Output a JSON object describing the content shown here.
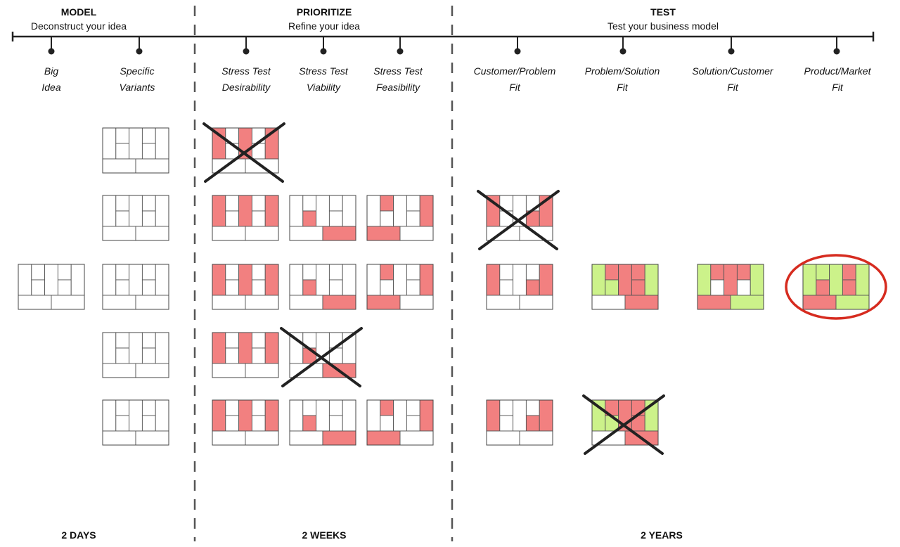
{
  "phases": [
    {
      "title": "MODEL",
      "subtitle": "Deconstruct your idea",
      "duration": "2 DAYS"
    },
    {
      "title": "PRIORITIZE",
      "subtitle": "Refine your idea",
      "duration": "2 WEEKS"
    },
    {
      "title": "TEST",
      "subtitle": "Test your business model",
      "duration": "2 YEARS"
    }
  ],
  "stages": [
    {
      "line1": "Big",
      "line2": "Idea"
    },
    {
      "line1": "Specific",
      "line2": "Variants"
    },
    {
      "line1": "Stress Test",
      "line2": "Desirability"
    },
    {
      "line1": "Stress Test",
      "line2": "Viability"
    },
    {
      "line1": "Stress Test",
      "line2": "Feasibility"
    },
    {
      "line1": "Customer/Problem",
      "line2": "Fit"
    },
    {
      "line1": "Problem/Solution",
      "line2": "Fit"
    },
    {
      "line1": "Solution/Customer",
      "line2": "Fit"
    },
    {
      "line1": "Product/Market",
      "line2": "Fit"
    }
  ],
  "colors": {
    "tested": "#f28080",
    "validated": "#ccf28a",
    "untested": "#ffffff",
    "rejected_mark": "#222222",
    "winner_circle": "#d62b1f",
    "line": "#222222"
  },
  "canvases": [
    {
      "stage": 0,
      "row": 2,
      "fill": "none",
      "rejected": false
    },
    {
      "stage": 1,
      "row": 0,
      "fill": "none",
      "rejected": false
    },
    {
      "stage": 1,
      "row": 1,
      "fill": "none",
      "rejected": false
    },
    {
      "stage": 1,
      "row": 2,
      "fill": "none",
      "rejected": false
    },
    {
      "stage": 1,
      "row": 3,
      "fill": "none",
      "rejected": false
    },
    {
      "stage": 1,
      "row": 4,
      "fill": "none",
      "rejected": false
    },
    {
      "stage": 2,
      "row": 0,
      "fill": "desirability",
      "rejected": true
    },
    {
      "stage": 2,
      "row": 1,
      "fill": "desirability",
      "rejected": false
    },
    {
      "stage": 2,
      "row": 2,
      "fill": "desirability",
      "rejected": false
    },
    {
      "stage": 2,
      "row": 3,
      "fill": "desirability",
      "rejected": false
    },
    {
      "stage": 2,
      "row": 4,
      "fill": "desirability",
      "rejected": false
    },
    {
      "stage": 3,
      "row": 1,
      "fill": "viability",
      "rejected": false
    },
    {
      "stage": 3,
      "row": 2,
      "fill": "viability",
      "rejected": false
    },
    {
      "stage": 3,
      "row": 3,
      "fill": "viability",
      "rejected": true
    },
    {
      "stage": 3,
      "row": 4,
      "fill": "viability",
      "rejected": false
    },
    {
      "stage": 4,
      "row": 1,
      "fill": "feasibility",
      "rejected": false
    },
    {
      "stage": 4,
      "row": 2,
      "fill": "feasibility",
      "rejected": false
    },
    {
      "stage": 4,
      "row": 4,
      "fill": "feasibility",
      "rejected": false
    },
    {
      "stage": 5,
      "row": 1,
      "fill": "customer-problem",
      "rejected": true
    },
    {
      "stage": 5,
      "row": 2,
      "fill": "customer-problem",
      "rejected": false
    },
    {
      "stage": 5,
      "row": 4,
      "fill": "customer-problem",
      "rejected": false
    },
    {
      "stage": 6,
      "row": 2,
      "fill": "problem-solution",
      "rejected": false
    },
    {
      "stage": 6,
      "row": 4,
      "fill": "problem-solution",
      "rejected": true
    },
    {
      "stage": 7,
      "row": 2,
      "fill": "solution-customer",
      "rejected": false
    },
    {
      "stage": 8,
      "row": 2,
      "fill": "product-market",
      "rejected": false,
      "winner": true
    }
  ]
}
